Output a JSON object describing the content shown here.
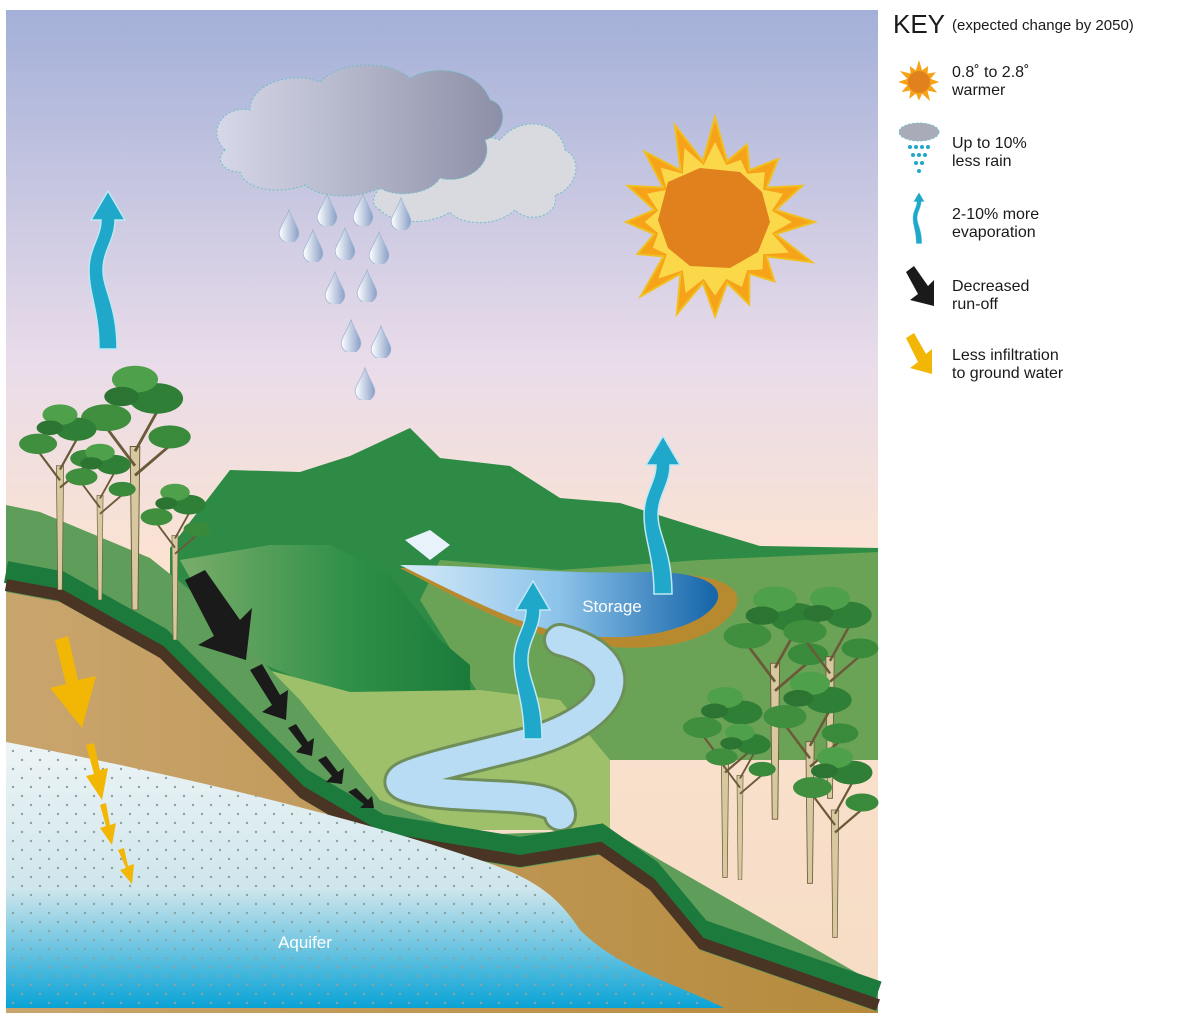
{
  "diagram": {
    "labels": {
      "storage": "Storage",
      "aquifer": "Aquifer"
    }
  },
  "key": {
    "title": "KEY",
    "subtitle": "(expected change by 2050)",
    "items": [
      {
        "lines": [
          "0.8˚ to 2.8˚",
          "warmer"
        ]
      },
      {
        "lines": [
          "Up to 10%",
          "less rain"
        ]
      },
      {
        "lines": [
          "2-10% more",
          "evaporation"
        ]
      },
      {
        "lines": [
          "Decreased",
          "run-off"
        ]
      },
      {
        "lines": [
          "Less infiltration",
          "to ground water"
        ]
      }
    ]
  }
}
